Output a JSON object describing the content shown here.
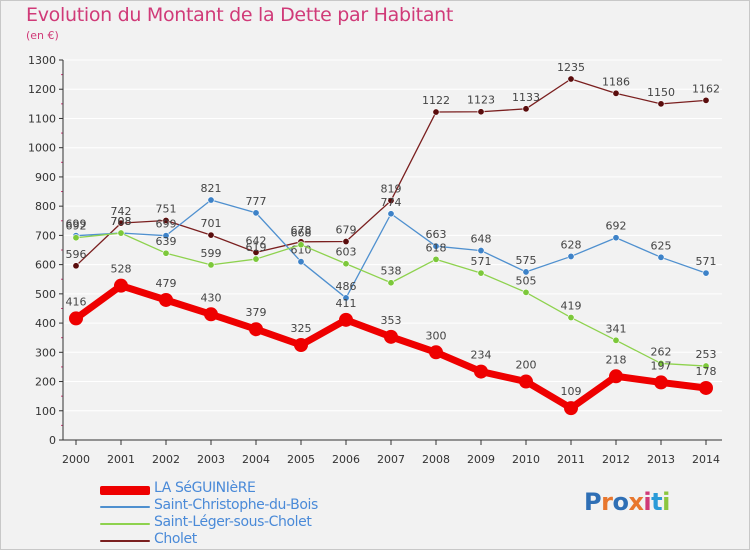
{
  "title": "Evolution du Montant de la Dette par Habitant",
  "unit": "(en €)",
  "logo": {
    "text": "Proxiti",
    "letters": [
      "P",
      "r",
      "o",
      "x",
      "i",
      "t",
      "i"
    ],
    "colors": [
      "#2f6fb5",
      "#e8772e",
      "#2f6fb5",
      "#e8772e",
      "#d03a78",
      "#2a9bd8",
      "#8cc63f"
    ]
  },
  "legend": [
    {
      "label": "LA SéGUINIèRE",
      "color": "#ee0000",
      "text_color": "#4a8ad8"
    },
    {
      "label": "Saint-Christophe-du-Bois",
      "color": "#4f90cf",
      "text_color": "#4a8ad8"
    },
    {
      "label": "Saint-Léger-sous-Cholet",
      "color": "#8ed24e",
      "text_color": "#4a8ad8"
    },
    {
      "label": "Cholet",
      "color": "#7a1f1f",
      "text_color": "#4a8ad8"
    }
  ],
  "chart_data": {
    "type": "line",
    "title": "Evolution du Montant de la Dette par Habitant",
    "ylabel": "(en €)",
    "xlabel": "",
    "ylim": [
      0,
      1300
    ],
    "yticks": [
      0,
      100,
      200,
      300,
      400,
      500,
      600,
      700,
      800,
      900,
      1000,
      1100,
      1200,
      1300
    ],
    "grid": "horizontal",
    "legend_position": "bottom-left",
    "x": [
      "2000",
      "2001",
      "2002",
      "2003",
      "2004",
      "2005",
      "2006",
      "2007",
      "2008",
      "2009",
      "2010",
      "2011",
      "2012",
      "2013",
      "2014"
    ],
    "series": [
      {
        "name": "Cholet",
        "color": "#7a1f1f",
        "marker": "#5a0d0d",
        "values": [
          596,
          742,
          751,
          701,
          642,
          678,
          679,
          819,
          1122,
          1123,
          1133,
          1235,
          1186,
          1150,
          1162
        ]
      },
      {
        "name": "Saint-Christophe-du-Bois",
        "color": "#4f90cf",
        "marker": "#3d82c8",
        "values": [
          699,
          708,
          699,
          821,
          777,
          610,
          486,
          774,
          663,
          648,
          575,
          628,
          692,
          625,
          571
        ]
      },
      {
        "name": "Saint-Léger-sous-Cholet",
        "color": "#8ed24e",
        "marker": "#7cc83a",
        "values": [
          692,
          708,
          639,
          599,
          619,
          668,
          603,
          538,
          618,
          571,
          505,
          419,
          341,
          262,
          253
        ]
      },
      {
        "name": "LA SéGUINIèRE",
        "color": "#ee0000",
        "marker": "#ee0000",
        "values": [
          416,
          528,
          479,
          430,
          379,
          325,
          411,
          353,
          300,
          234,
          200,
          109,
          218,
          197,
          178
        ]
      }
    ]
  }
}
